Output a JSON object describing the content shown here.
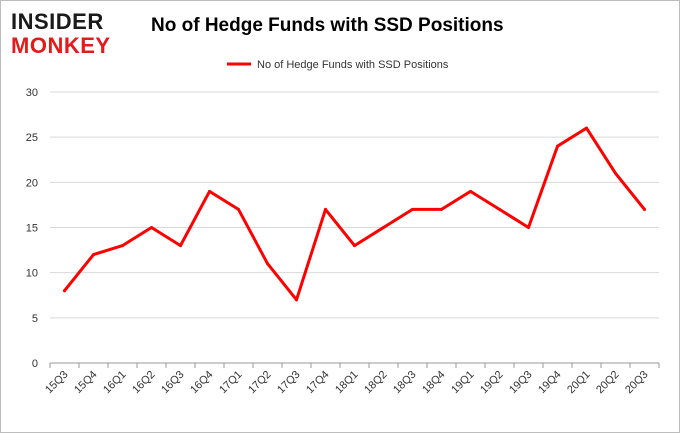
{
  "brand": {
    "top": "INSIDER",
    "bottom": "MONKEY"
  },
  "chart_data": {
    "type": "line",
    "title": "No of Hedge Funds with SSD Positions",
    "xlabel": "",
    "ylabel": "",
    "categories": [
      "15Q3",
      "15Q4",
      "16Q1",
      "16Q2",
      "16Q3",
      "16Q4",
      "17Q1",
      "17Q2",
      "17Q3",
      "17Q4",
      "18Q1",
      "18Q2",
      "18Q3",
      "18Q4",
      "19Q1",
      "19Q2",
      "19Q3",
      "19Q4",
      "20Q1",
      "20Q2",
      "20Q3"
    ],
    "series": [
      {
        "name": "No of Hedge Funds with SSD Positions",
        "values": [
          8,
          12,
          13,
          15,
          13,
          19,
          17,
          11,
          7,
          17,
          13,
          15,
          17,
          17,
          19,
          17,
          15,
          24,
          26,
          21,
          17
        ],
        "color": "#ff0000"
      }
    ],
    "ylim": [
      0,
      30
    ],
    "yticks": [
      0,
      5,
      10,
      15,
      20,
      25,
      30
    ],
    "grid": true,
    "legend_position": "top-center",
    "colors": {
      "line": "#ff0000",
      "grid": "#d9d9d9",
      "axis": "#999999"
    }
  }
}
